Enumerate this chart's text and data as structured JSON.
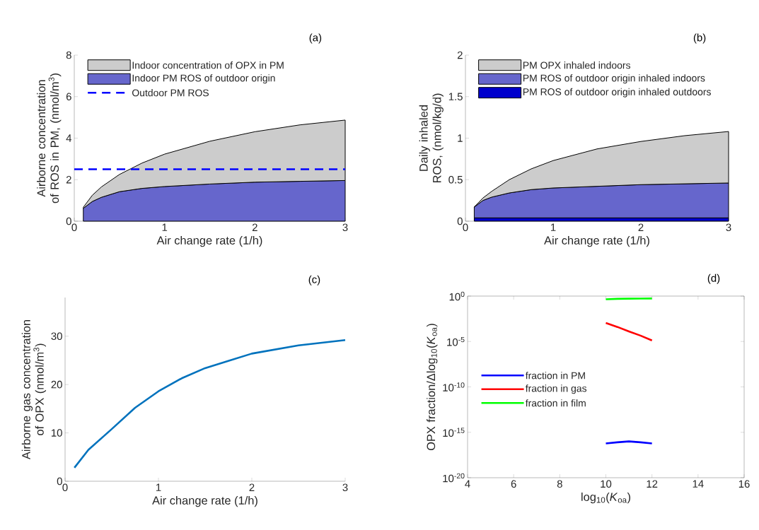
{
  "chart_data": [
    {
      "type": "area",
      "title": "(a)",
      "xlabel": "Air change rate (1/h)",
      "ylabel": "Airborne concentration of ROS in PM, (nmol/m$^{3}$)",
      "stacked": true,
      "legend": "top left",
      "x": [
        0.1,
        0.2,
        0.3,
        0.5,
        0.75,
        1,
        1.5,
        2,
        2.5,
        3
      ],
      "series": [
        {
          "name": "Indoor PM ROS of outdoor origin",
          "color": "#6666cc",
          "values": [
            0.62,
            0.95,
            1.15,
            1.42,
            1.58,
            1.67,
            1.79,
            1.88,
            1.92,
            1.96
          ]
        },
        {
          "name": "Indoor concentration of OPX in PM",
          "color": "#cccccc",
          "values": [
            0.05,
            0.3,
            0.5,
            0.83,
            1.22,
            1.56,
            2.06,
            2.43,
            2.72,
            2.91
          ]
        }
      ],
      "ref_lines": [
        {
          "axis": "y",
          "value": 2.5,
          "label": "Outdoor PM ROS",
          "color": "#0000ff",
          "line_style": "dashed"
        }
      ],
      "xlim": [
        0,
        3
      ],
      "ylim": [
        0,
        8
      ],
      "xticks": [
        0,
        1,
        2,
        3
      ],
      "yticks": [
        0,
        2,
        4,
        6,
        8
      ]
    },
    {
      "type": "area",
      "title": "(b)",
      "xlabel": "Air change rate (1/h)",
      "ylabel": "Daily inhaled ROS, (nmol/kg/d)",
      "stacked": true,
      "legend": "top left",
      "x": [
        0.1,
        0.2,
        0.3,
        0.5,
        0.75,
        1,
        1.5,
        2,
        2.5,
        3
      ],
      "series": [
        {
          "name": "PM ROS of outdoor origin inhaled outdoors",
          "color": "#0000cc",
          "values": [
            0.04,
            0.04,
            0.04,
            0.04,
            0.04,
            0.04,
            0.04,
            0.04,
            0.04,
            0.04
          ]
        },
        {
          "name": "PM ROS of outdoor origin inhaled indoors",
          "color": "#6666cc",
          "values": [
            0.13,
            0.21,
            0.25,
            0.3,
            0.34,
            0.36,
            0.38,
            0.4,
            0.41,
            0.42
          ]
        },
        {
          "name": "PM OPX inhaled indoors",
          "color": "#cccccc",
          "values": [
            0.0,
            0.03,
            0.07,
            0.16,
            0.25,
            0.33,
            0.45,
            0.52,
            0.58,
            0.62
          ]
        }
      ],
      "xlim": [
        0,
        3
      ],
      "ylim": [
        0,
        2
      ],
      "xticks": [
        0,
        1,
        2,
        3
      ],
      "yticks": [
        0,
        0.5,
        1,
        1.5,
        2
      ]
    },
    {
      "type": "line",
      "title": "(c)",
      "xlabel": "Air change rate (1/h)",
      "ylabel": "Airborne gas concentration of OPX (nmol/m$^{3}$)",
      "x": [
        0.1,
        0.25,
        0.5,
        0.75,
        1,
        1.25,
        1.5,
        2,
        2.5,
        3
      ],
      "series": [
        {
          "color": "#0072bd",
          "values": [
            2.8,
            6.5,
            10.8,
            15.2,
            18.6,
            21.3,
            23.4,
            26.4,
            28.1,
            29.2
          ]
        }
      ],
      "xlim": [
        0,
        3
      ],
      "ylim": [
        0,
        38
      ],
      "xticks": [
        0,
        1,
        2,
        3
      ],
      "yticks": [
        0,
        10,
        20,
        30
      ]
    },
    {
      "type": "line",
      "title": "(d)",
      "xlabel": "log$_{10}$(*K*$_{oa}$)",
      "ylabel": "OPX fraction/Δlog$_{10}$(*K*$_{oa}$)",
      "log": "y",
      "legend": "left",
      "x": [
        10,
        10.5,
        11,
        11.5,
        12
      ],
      "series": [
        {
          "name": "fraction in PM",
          "color": "#0000ff",
          "values": [
            6e-17,
            8e-17,
            1e-16,
            8e-17,
            6e-17
          ]
        },
        {
          "name": "fraction in gas",
          "color": "#ff0000",
          "values": [
            0.0011,
            0.0004,
            0.00013,
            4.5e-05,
            1.3e-05
          ]
        },
        {
          "name": "fraction in film",
          "color": "#00ff00",
          "values": [
            0.44,
            0.5,
            0.52,
            0.54,
            0.55
          ]
        }
      ],
      "xlim": [
        4,
        16
      ],
      "ylim": [
        1e-20,
        1
      ],
      "xticks": [
        4,
        6,
        8,
        10,
        12,
        14,
        16
      ],
      "yticks": [
        {
          "value": 1e-20,
          "label": "10$^{-20}$"
        },
        {
          "value": 1e-15,
          "label": "10$^{-15}$"
        },
        {
          "value": 1e-10,
          "label": "10$^{-10}$"
        },
        {
          "value": 1e-05,
          "label": "10$^{-5}$"
        },
        {
          "value": 1,
          "label": "10$^{0}$"
        }
      ]
    }
  ]
}
